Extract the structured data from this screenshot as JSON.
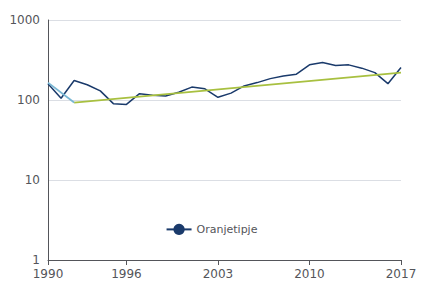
{
  "chart_data": {
    "type": "line",
    "x": [
      1990,
      1991,
      1992,
      1993,
      1994,
      1995,
      1996,
      1997,
      1998,
      1999,
      2000,
      2001,
      2002,
      2003,
      2004,
      2005,
      2006,
      2007,
      2008,
      2009,
      2010,
      2011,
      2012,
      2013,
      2014,
      2015,
      2016,
      2017
    ],
    "series": [
      {
        "name": "Oranjetipje",
        "color": "#1a3a6b",
        "values": [
          160,
          105,
          175,
          155,
          130,
          90,
          88,
          120,
          115,
          112,
          125,
          145,
          138,
          108,
          122,
          150,
          165,
          185,
          200,
          210,
          275,
          295,
          270,
          275,
          250,
          220,
          160,
          255
        ]
      },
      {
        "color": "#a8c040",
        "x": [
          1992,
          2017
        ],
        "values": [
          93,
          220
        ]
      },
      {
        "color": "#7ab8d4",
        "x": [
          1990,
          1992
        ],
        "values": [
          165,
          93
        ]
      }
    ],
    "xlim": [
      1990,
      2017
    ],
    "xticks": [
      1990,
      1996,
      2003,
      2010,
      2017
    ],
    "ylim": [
      1,
      1000
    ],
    "yticks": [
      1,
      10,
      100,
      1000
    ],
    "log": "y",
    "grid": true,
    "legend": "lower center"
  }
}
